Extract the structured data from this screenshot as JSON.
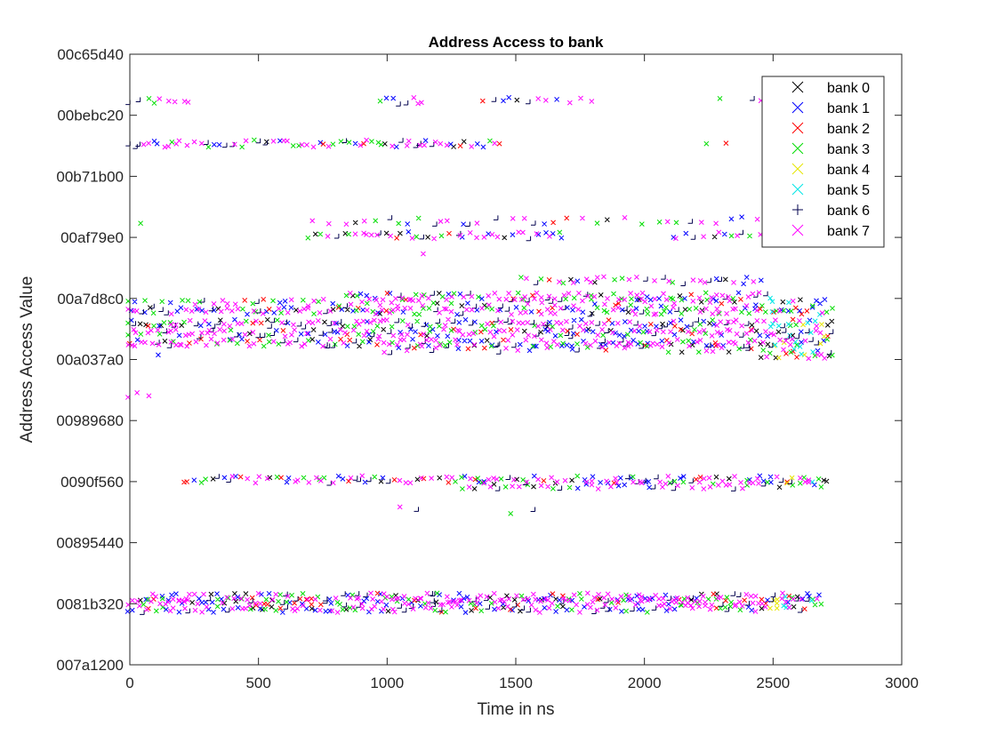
{
  "chart_data": {
    "type": "scatter",
    "title": "Address Access to bank",
    "xlabel": "Time in ns",
    "ylabel": "Address Access Value",
    "xlim": [
      0,
      3000
    ],
    "ylim": [
      8000000,
      13000000
    ],
    "x_ticks": [
      {
        "value": 0,
        "label": "0"
      },
      {
        "value": 500,
        "label": "500"
      },
      {
        "value": 1000,
        "label": "1000"
      },
      {
        "value": 1500,
        "label": "1500"
      },
      {
        "value": 2000,
        "label": "2000"
      },
      {
        "value": 2500,
        "label": "2500"
      },
      {
        "value": 3000,
        "label": "3000"
      }
    ],
    "y_ticks": [
      {
        "value": 8000000,
        "label": "007a1200"
      },
      {
        "value": 8500000,
        "label": "0081b320"
      },
      {
        "value": 9000000,
        "label": "00895440"
      },
      {
        "value": 9500000,
        "label": "0090f560"
      },
      {
        "value": 10000000,
        "label": "00989680"
      },
      {
        "value": 10500000,
        "label": "00a037a0"
      },
      {
        "value": 11000000,
        "label": "00a7d8c0"
      },
      {
        "value": 11500000,
        "label": "00af79e0"
      },
      {
        "value": 12000000,
        "label": "00b71b00"
      },
      {
        "value": 12500000,
        "label": "00bebc20"
      },
      {
        "value": 13000000,
        "label": "00c65d40"
      }
    ],
    "grid": false,
    "legend_position": "top-right",
    "series": [
      {
        "name": "bank 0",
        "color": "#000000",
        "marker": "x"
      },
      {
        "name": "bank 1",
        "color": "#0000ff",
        "marker": "x"
      },
      {
        "name": "bank 2",
        "color": "#ff0000",
        "marker": "x"
      },
      {
        "name": "bank 3",
        "color": "#00dd00",
        "marker": "x"
      },
      {
        "name": "bank 4",
        "color": "#e6e600",
        "marker": "x"
      },
      {
        "name": "bank 5",
        "color": "#00e6e6",
        "marker": "x"
      },
      {
        "name": "bank 6",
        "color": "#00004d",
        "marker": "+"
      },
      {
        "name": "bank 7",
        "color": "#ff00ff",
        "marker": "x"
      }
    ],
    "clusters": [
      {
        "y": 12600000,
        "x_start": 0,
        "x_end": 260,
        "density": 0.6
      },
      {
        "y": 12600000,
        "x_start": 980,
        "x_end": 1150,
        "density": 0.45
      },
      {
        "y": 12600000,
        "x_start": 1380,
        "x_end": 1830,
        "density": 0.5
      },
      {
        "y": 12600000,
        "x_start": 2300,
        "x_end": 2500,
        "density": 0.2
      },
      {
        "y": 12250000,
        "x_start": 0,
        "x_end": 1460,
        "density": 0.85
      },
      {
        "y": 12250000,
        "x_start": 2250,
        "x_end": 2420,
        "density": 0.2
      },
      {
        "y": 11620000,
        "x_start": 50,
        "x_end": 230,
        "density": 0.08
      },
      {
        "y": 11620000,
        "x_start": 720,
        "x_end": 2500,
        "density": 0.35
      },
      {
        "y": 11500000,
        "x_start": 700,
        "x_end": 1700,
        "density": 0.7
      },
      {
        "y": 11500000,
        "x_start": 2120,
        "x_end": 2500,
        "density": 0.5
      },
      {
        "y": 11350000,
        "x_start": 1150,
        "x_end": 1170,
        "density": 0.05
      },
      {
        "y": 11130000,
        "x_start": 1530,
        "x_end": 2480,
        "density": 0.6
      },
      {
        "y": 11000000,
        "x_start": 850,
        "x_end": 2500,
        "density": 0.95
      },
      {
        "y": 10950000,
        "x_start": 0,
        "x_end": 2740,
        "density": 0.55
      },
      {
        "y": 10880000,
        "x_start": 0,
        "x_end": 2740,
        "density": 1.0
      },
      {
        "y": 10780000,
        "x_start": 0,
        "x_end": 2740,
        "density": 1.0
      },
      {
        "y": 10700000,
        "x_start": 0,
        "x_end": 2740,
        "density": 1.0
      },
      {
        "y": 10620000,
        "x_start": 0,
        "x_end": 2740,
        "density": 1.0
      },
      {
        "y": 10570000,
        "x_start": 1000,
        "x_end": 2740,
        "density": 0.5
      },
      {
        "y": 10520000,
        "x_start": 2460,
        "x_end": 2740,
        "density": 0.9
      },
      {
        "y": 10510000,
        "x_start": 120,
        "x_end": 170,
        "density": 0.3
      },
      {
        "y": 10200000,
        "x_start": 0,
        "x_end": 90,
        "density": 0.5
      },
      {
        "y": 9500000,
        "x_start": 220,
        "x_end": 2730,
        "density": 0.85
      },
      {
        "y": 9450000,
        "x_start": 1300,
        "x_end": 2730,
        "density": 0.7
      },
      {
        "y": 9250000,
        "x_start": 1060,
        "x_end": 1250,
        "density": 0.12
      },
      {
        "y": 9250000,
        "x_start": 1490,
        "x_end": 1700,
        "density": 0.12
      },
      {
        "y": 8540000,
        "x_start": 80,
        "x_end": 2700,
        "density": 0.9
      },
      {
        "y": 8500000,
        "x_start": 0,
        "x_end": 2700,
        "density": 1.0
      },
      {
        "y": 8440000,
        "x_start": 0,
        "x_end": 2640,
        "density": 0.9
      }
    ]
  }
}
